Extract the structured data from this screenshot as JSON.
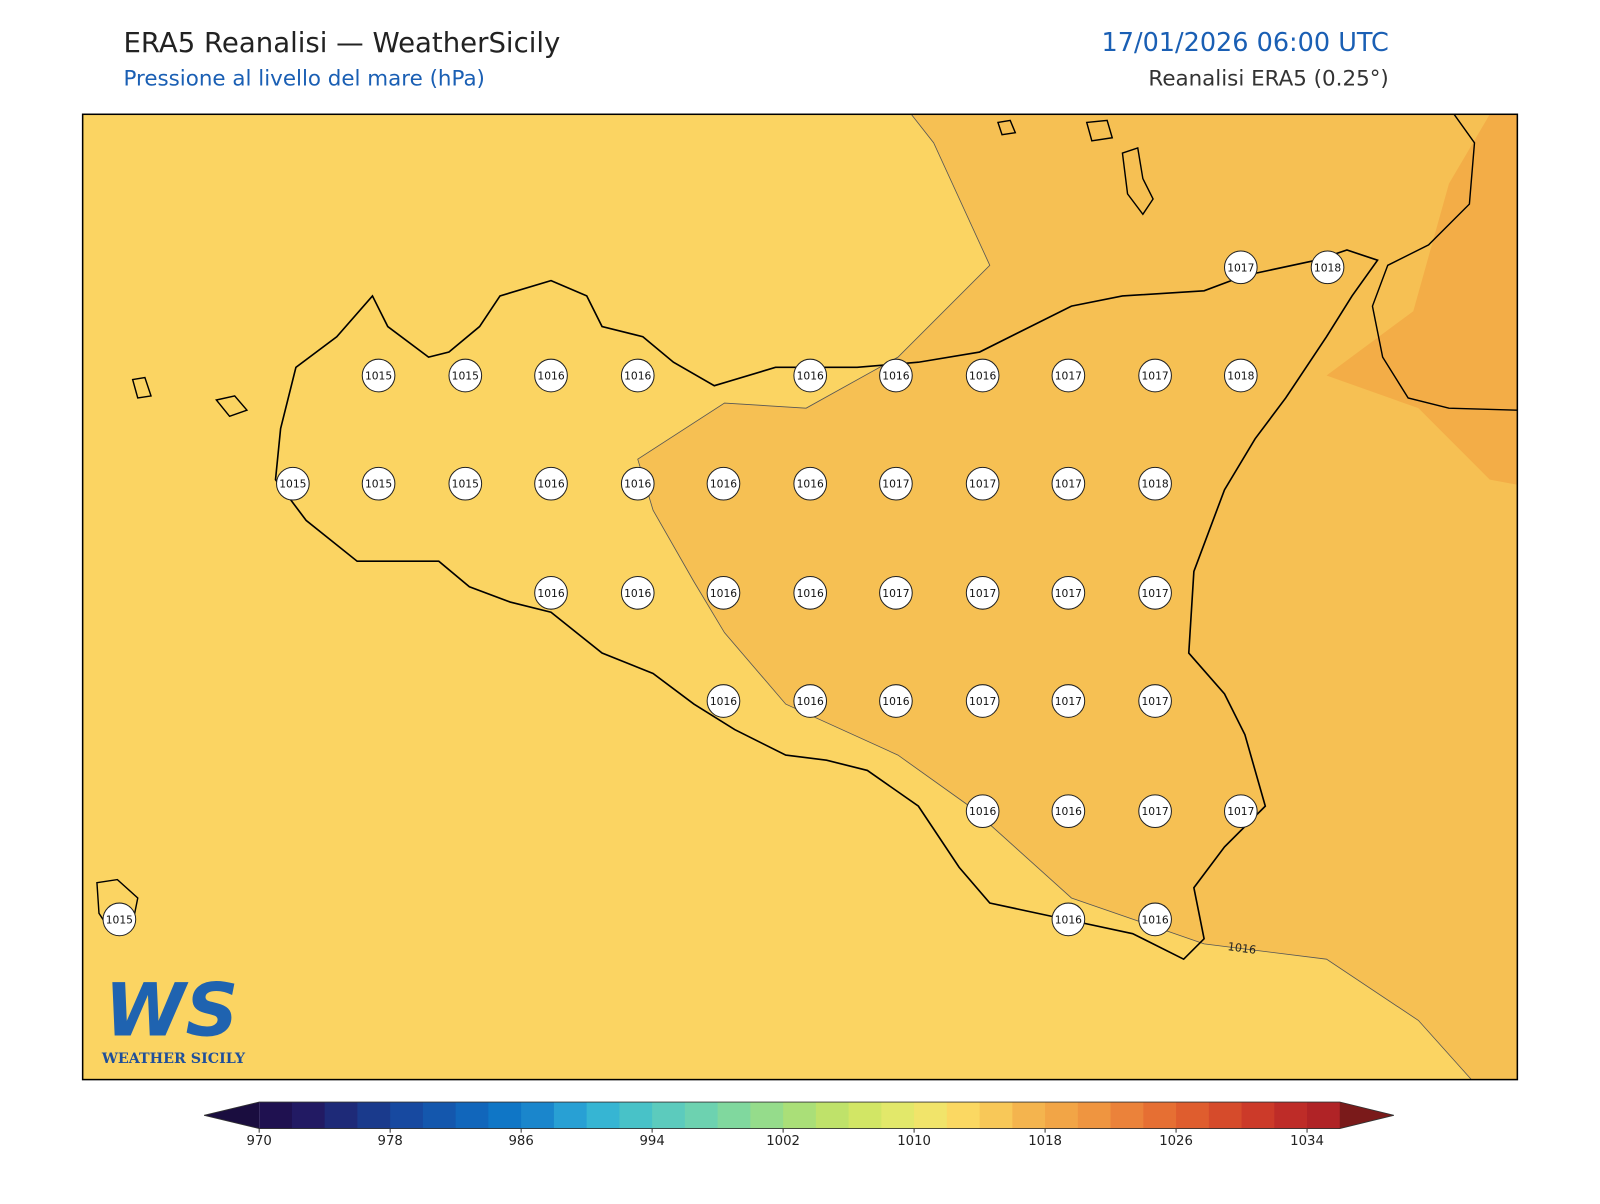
{
  "header": {
    "title": "ERA5 Reanalisi — WeatherSicily",
    "subtitle": "Pressione al livello del mare (hPa)",
    "datetime": "17/01/2026 06:00 UTC",
    "source": "Reanalisi ERA5 (0.25°)"
  },
  "stations": [
    1017,
    1018,
    1015,
    1015,
    1016,
    1016,
    1016,
    1016,
    1016,
    1017,
    1017,
    1018,
    1015,
    1015,
    1015,
    1016,
    1016,
    1016,
    1016,
    1017,
    1017,
    1017,
    1018,
    1016,
    1016,
    1016,
    1016,
    1017,
    1017,
    1017,
    1017,
    1016,
    1016,
    1016,
    1017,
    1017,
    1017,
    1016,
    1016,
    1017,
    1017,
    1015,
    1016,
    1016
  ],
  "contour_label": "1016",
  "logo": {
    "mark": "WS",
    "text": "WEATHER SICILY"
  },
  "colorbar": {
    "lim": [
      970,
      1036
    ],
    "ticks": [
      970,
      978,
      986,
      994,
      1002,
      1010,
      1018,
      1026,
      1034
    ],
    "colors": [
      "#1f1150",
      "#221a63",
      "#1e2a78",
      "#1a3a8c",
      "#1749a0",
      "#1457ad",
      "#1166bb",
      "#0f76c6",
      "#1a86cc",
      "#28a0d4",
      "#36b5d3",
      "#48c2c8",
      "#5ccbbd",
      "#6dd2b0",
      "#80d89e",
      "#95dc8b",
      "#aadf78",
      "#bfe26a",
      "#d2e665",
      "#e2e86a",
      "#f1e46a",
      "#fbd862",
      "#f8c858",
      "#f4b44e",
      "#f2a546",
      "#ef9540",
      "#eb823a",
      "#e66f33",
      "#df5d2e",
      "#d64b2b",
      "#cc3a29",
      "#be2c28",
      "#b02326"
    ],
    "under": "#1a0d3f",
    "over": "#7a1a1a"
  }
}
